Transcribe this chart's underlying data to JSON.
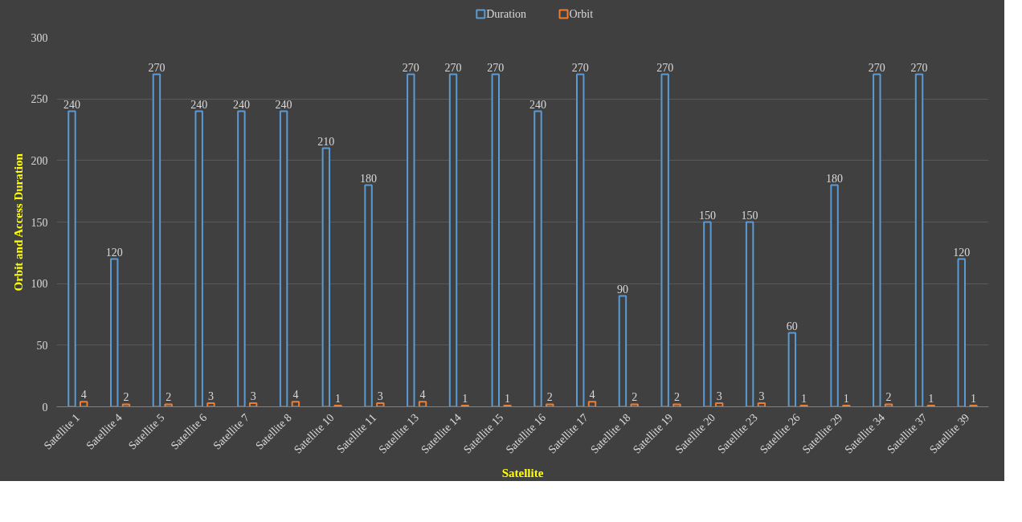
{
  "chart_data": {
    "type": "bar",
    "xlabel": "Satellite",
    "ylabel": "Orbit and Access Duration",
    "categories": [
      "Satellite 1",
      "Satellite 4",
      "Satellite 5",
      "Satellite 6",
      "Satellite 7",
      "Satellite 8",
      "Satellite 10",
      "Satellite 11",
      "Satellite 13",
      "Satellite 14",
      "Satellite 15",
      "Satellite 16",
      "Satellite 17",
      "Satellite 18",
      "Satellite 19",
      "Satellite 20",
      "Satellite 23",
      "Satellite 26",
      "Satellite 29",
      "Satellite 34",
      "Satellite 37",
      "Satellite 39"
    ],
    "series": [
      {
        "name": "Duration",
        "color": "#5b9bd5",
        "values": [
          240,
          120,
          270,
          240,
          240,
          240,
          210,
          180,
          270,
          270,
          270,
          240,
          270,
          90,
          270,
          150,
          150,
          60,
          180,
          270,
          270,
          120
        ]
      },
      {
        "name": "Orbit",
        "color": "#ed7d31",
        "values": [
          4,
          2,
          2,
          3,
          3,
          4,
          1,
          3,
          4,
          1,
          1,
          2,
          4,
          2,
          2,
          3,
          3,
          1,
          1,
          2,
          1,
          1
        ]
      }
    ],
    "ylim": [
      0,
      300
    ],
    "yticks": [
      0,
      50,
      100,
      150,
      200,
      250,
      300
    ],
    "grid": "y",
    "legend": "top",
    "data_labels": true
  }
}
